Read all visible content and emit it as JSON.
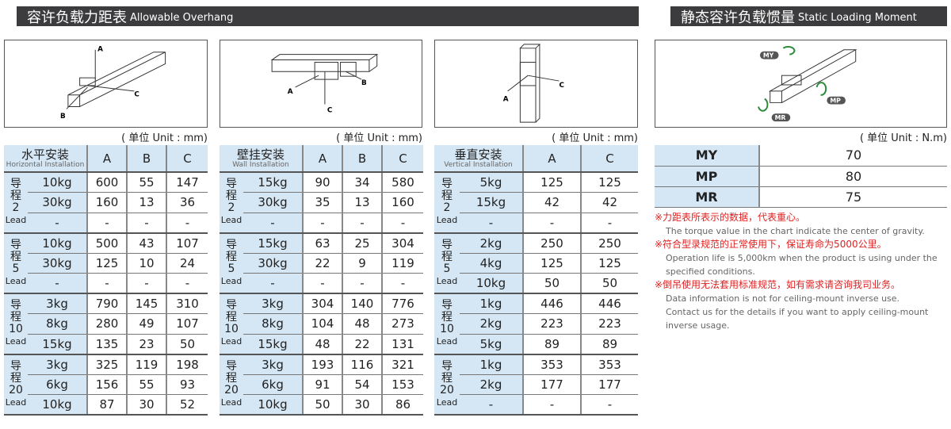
{
  "left_header": {
    "cn": "容许负载力距表",
    "en": "Allowable Overhang"
  },
  "right_header": {
    "cn": "静态容许负载惯量",
    "en": "Static Loading Moment"
  },
  "diagram_labels": {
    "a": "A",
    "b": "B",
    "c": "C",
    "my": "MY",
    "mp": "MP",
    "mr": "MR"
  },
  "unit_mm": "( 单位 Unit : mm)",
  "unit_nm": "( 单位 Unit : N.m)",
  "tables": [
    {
      "cn": "水平安装",
      "en": "Horizontal Installation",
      "cols": [
        "A",
        "B",
        "C"
      ],
      "groups": [
        {
          "cn1": "导",
          "cn2": "程",
          "num": "2",
          "lead": "Lead",
          "rows": [
            [
              "10kg",
              "600",
              "55",
              "147"
            ],
            [
              "30kg",
              "160",
              "13",
              "36"
            ],
            [
              "-",
              "-",
              "-",
              "-"
            ]
          ]
        },
        {
          "cn1": "导",
          "cn2": "程",
          "num": "5",
          "lead": "Lead",
          "rows": [
            [
              "10kg",
              "500",
              "43",
              "107"
            ],
            [
              "30kg",
              "125",
              "10",
              "24"
            ],
            [
              "-",
              "-",
              "-",
              "-"
            ]
          ]
        },
        {
          "cn1": "导",
          "cn2": "程",
          "num": "10",
          "lead": "Lead",
          "rows": [
            [
              "3kg",
              "790",
              "145",
              "310"
            ],
            [
              "8kg",
              "280",
              "49",
              "107"
            ],
            [
              "15kg",
              "135",
              "23",
              "50"
            ]
          ]
        },
        {
          "cn1": "导",
          "cn2": "程",
          "num": "20",
          "lead": "Lead",
          "rows": [
            [
              "3kg",
              "325",
              "119",
              "198"
            ],
            [
              "6kg",
              "156",
              "55",
              "93"
            ],
            [
              "10kg",
              "87",
              "30",
              "52"
            ]
          ]
        }
      ]
    },
    {
      "cn": "壁挂安装",
      "en": "Wall Installation",
      "cols": [
        "A",
        "B",
        "C"
      ],
      "groups": [
        {
          "cn1": "导",
          "cn2": "程",
          "num": "2",
          "lead": "Lead",
          "rows": [
            [
              "15kg",
              "90",
              "34",
              "580"
            ],
            [
              "30kg",
              "35",
              "13",
              "160"
            ],
            [
              "-",
              "-",
              "-",
              "-"
            ]
          ]
        },
        {
          "cn1": "导",
          "cn2": "程",
          "num": "5",
          "lead": "Lead",
          "rows": [
            [
              "15kg",
              "63",
              "25",
              "304"
            ],
            [
              "30kg",
              "22",
              "9",
              "119"
            ],
            [
              "-",
              "-",
              "-",
              "-"
            ]
          ]
        },
        {
          "cn1": "导",
          "cn2": "程",
          "num": "10",
          "lead": "Lead",
          "rows": [
            [
              "3kg",
              "304",
              "140",
              "776"
            ],
            [
              "8kg",
              "104",
              "48",
              "273"
            ],
            [
              "15kg",
              "48",
              "22",
              "131"
            ]
          ]
        },
        {
          "cn1": "导",
          "cn2": "程",
          "num": "20",
          "lead": "Lead",
          "rows": [
            [
              "3kg",
              "193",
              "116",
              "321"
            ],
            [
              "6kg",
              "91",
              "54",
              "153"
            ],
            [
              "10kg",
              "50",
              "30",
              "86"
            ]
          ]
        }
      ]
    },
    {
      "cn": "垂直安装",
      "en": "Vertical Installation",
      "cols": [
        "A",
        "C"
      ],
      "groups": [
        {
          "cn1": "导",
          "cn2": "程",
          "num": "2",
          "lead": "Lead",
          "rows": [
            [
              "5kg",
              "125",
              "125"
            ],
            [
              "15kg",
              "42",
              "42"
            ],
            [
              "-",
              "-",
              "-"
            ]
          ]
        },
        {
          "cn1": "导",
          "cn2": "程",
          "num": "5",
          "lead": "Lead",
          "rows": [
            [
              "2kg",
              "250",
              "250"
            ],
            [
              "4kg",
              "125",
              "125"
            ],
            [
              "10kg",
              "50",
              "50"
            ]
          ]
        },
        {
          "cn1": "导",
          "cn2": "程",
          "num": "10",
          "lead": "Lead",
          "rows": [
            [
              "1kg",
              "446",
              "446"
            ],
            [
              "2kg",
              "223",
              "223"
            ],
            [
              "5kg",
              "89",
              "89"
            ]
          ]
        },
        {
          "cn1": "导",
          "cn2": "程",
          "num": "20",
          "lead": "Lead",
          "rows": [
            [
              "1kg",
              "353",
              "353"
            ],
            [
              "2kg",
              "177",
              "177"
            ],
            [
              "-",
              "-",
              "-"
            ]
          ]
        }
      ]
    }
  ],
  "moment": [
    [
      "MY",
      "70"
    ],
    [
      "MP",
      "80"
    ],
    [
      "MR",
      "75"
    ]
  ],
  "notes": [
    {
      "cn": "※力距表所表示的数据，代表重心。",
      "en": [
        "The torque value in the chart indicate the center of gravity."
      ]
    },
    {
      "cn": "※符合型录规范的正常使用下，保证寿命为5000公里。",
      "en": [
        "Operation life is 5,000km when the product is using under the",
        "specified conditions."
      ]
    },
    {
      "cn": "※倒吊使用无法套用标准规范，如有需求请咨询我司业务。",
      "en": [
        "Data information is not for ceiling-mount inverse use.",
        "Contact us for the details if you want to apply ceiling-mount",
        "inverse usage."
      ]
    }
  ]
}
